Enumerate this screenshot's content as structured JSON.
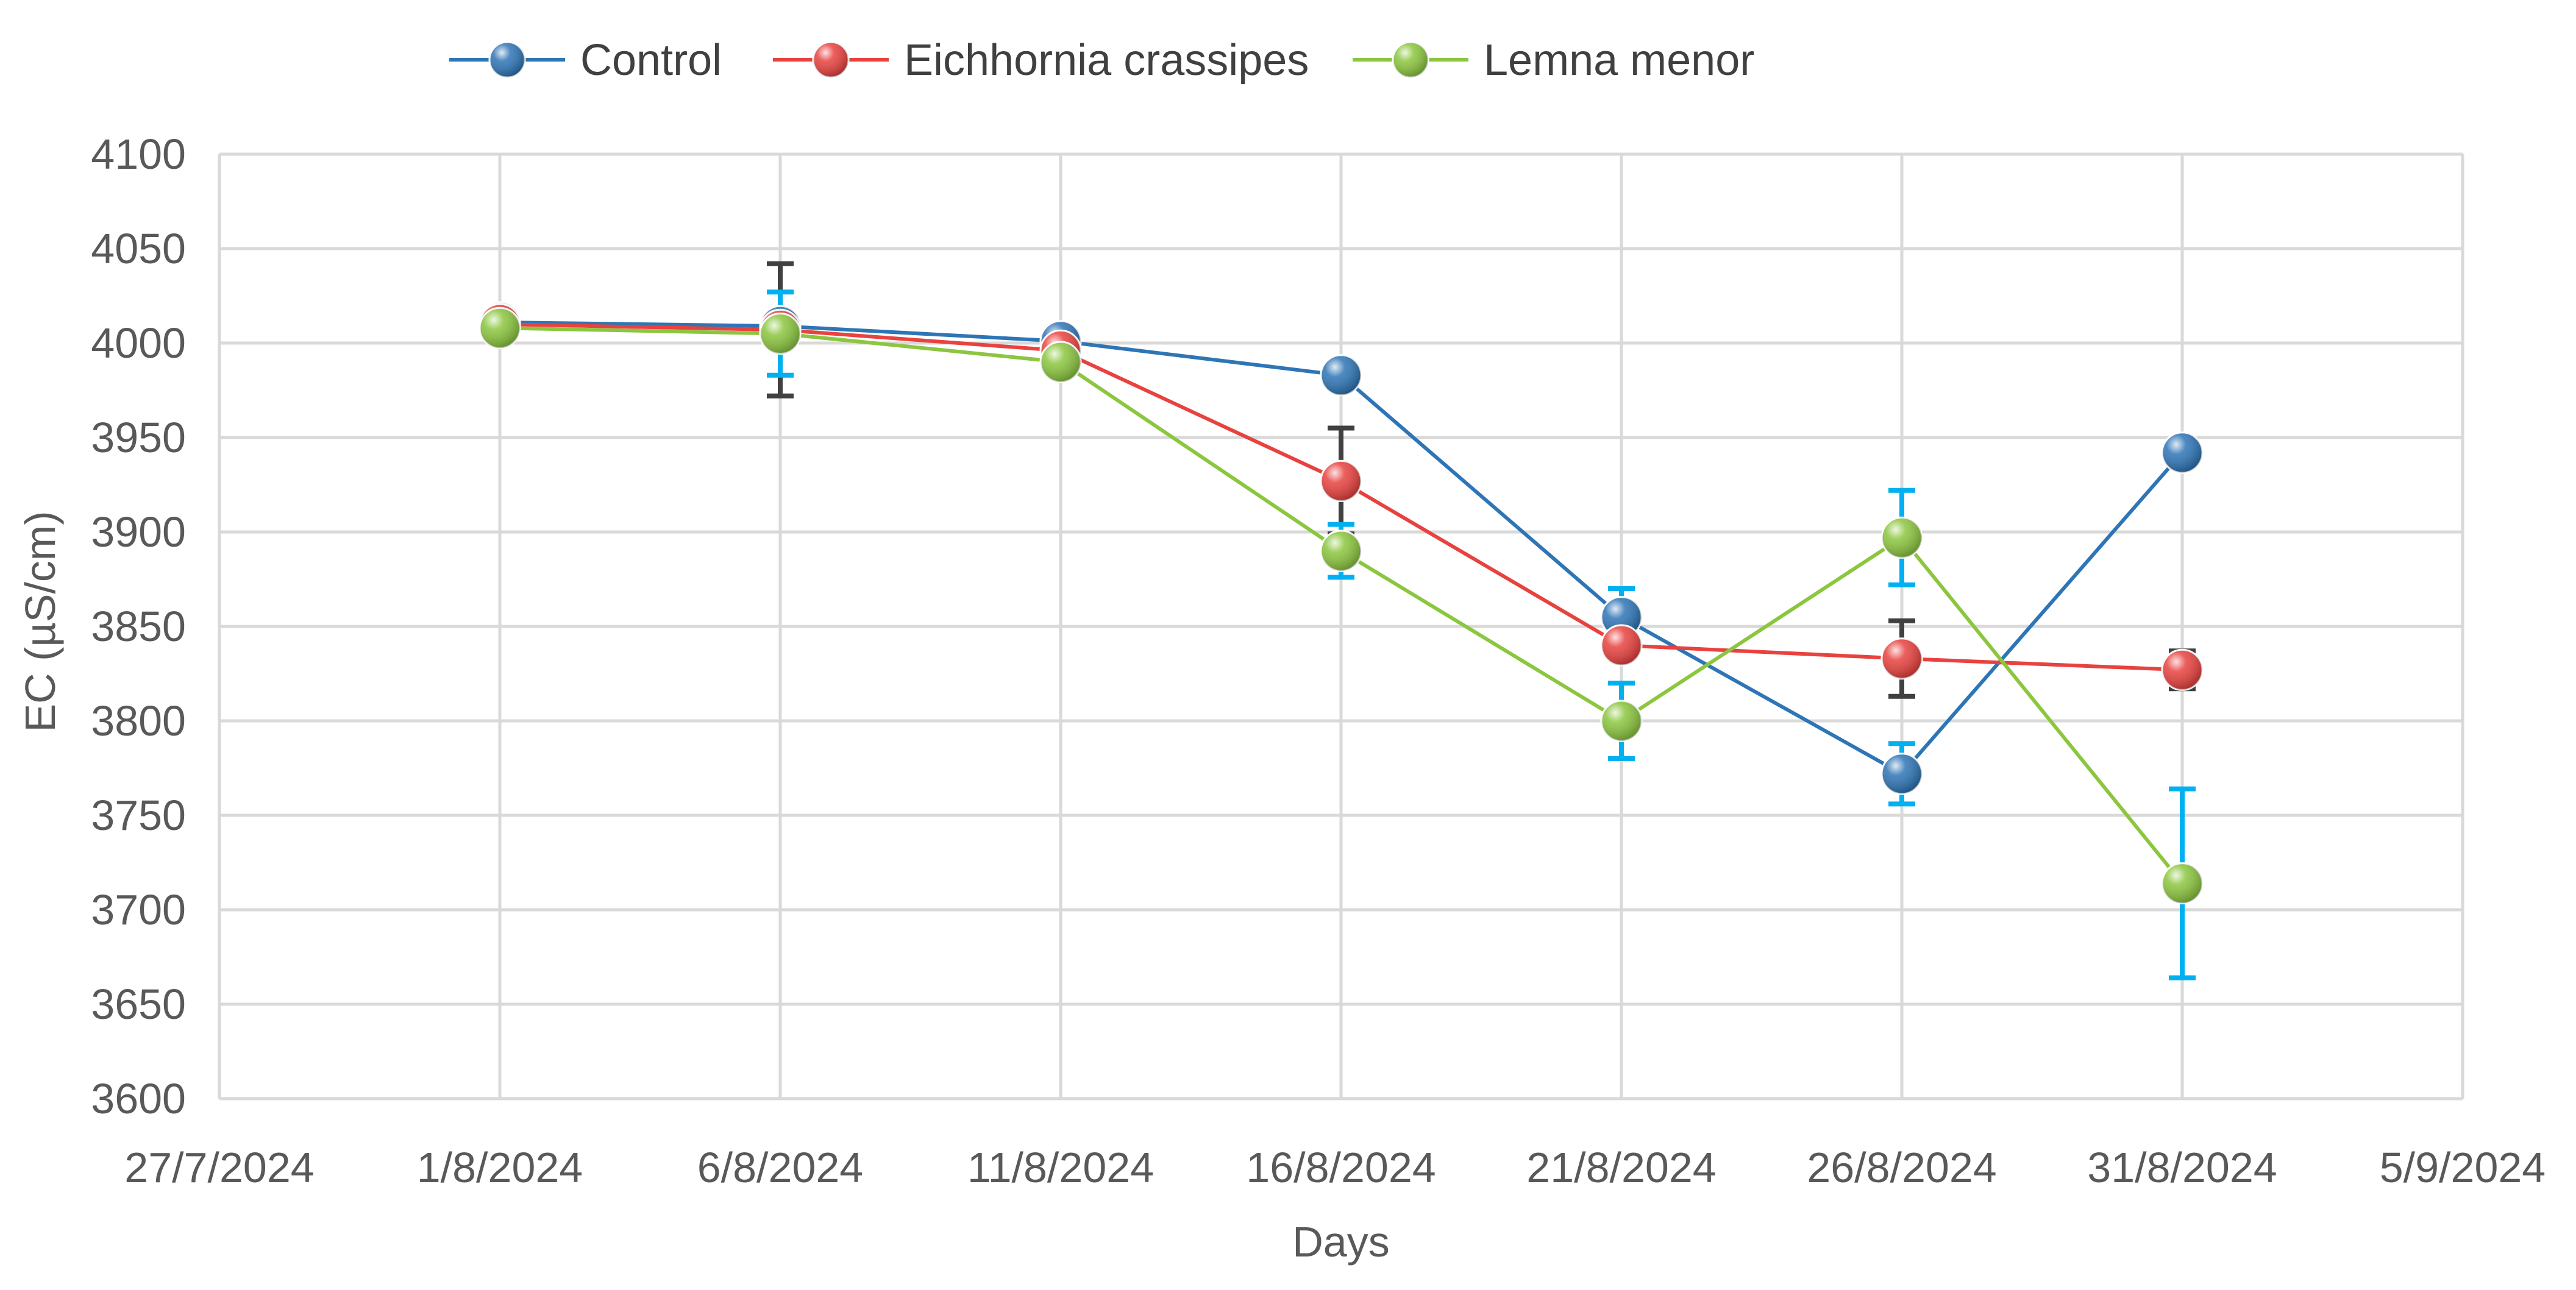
{
  "chart_data": {
    "type": "line",
    "title": "",
    "xlabel": "Days",
    "ylabel": "EC (µS/cm)",
    "ylim": [
      3600,
      4100
    ],
    "yticks": [
      3600,
      3650,
      3700,
      3750,
      3800,
      3850,
      3900,
      3950,
      4000,
      4050,
      4100
    ],
    "xlim": [
      "27/7/2024",
      "5/9/2024"
    ],
    "xticks": [
      "27/7/2024",
      "1/8/2024",
      "6/8/2024",
      "11/8/2024",
      "16/8/2024",
      "21/8/2024",
      "26/8/2024",
      "31/8/2024",
      "5/9/2024"
    ],
    "x": [
      "1/8/2024",
      "6/8/2024",
      "11/8/2024",
      "16/8/2024",
      "21/8/2024",
      "26/8/2024",
      "31/8/2024"
    ],
    "grid": true,
    "legend_position": "top",
    "series": [
      {
        "name": "Control",
        "color": "#2E75B6",
        "values": [
          4011,
          4009,
          4001,
          3983,
          3855,
          3772,
          3942
        ],
        "errors": [
          null,
          null,
          null,
          null,
          15,
          16,
          null
        ],
        "error_color": "#00B0F0"
      },
      {
        "name": "Eichhornia crassipes",
        "color": "#E8423F",
        "values": [
          4010,
          4007,
          3996,
          3927,
          3840,
          3833,
          3827
        ],
        "errors": [
          null,
          35,
          null,
          28,
          null,
          20,
          10
        ],
        "error_color": "#404040"
      },
      {
        "name": "Lemna menor",
        "color": "#8CC63F",
        "values": [
          4008,
          4005,
          3990,
          3890,
          3800,
          3897,
          3714
        ],
        "errors": [
          null,
          22,
          null,
          14,
          20,
          25,
          50
        ],
        "error_color": "#00B0F0"
      }
    ]
  }
}
